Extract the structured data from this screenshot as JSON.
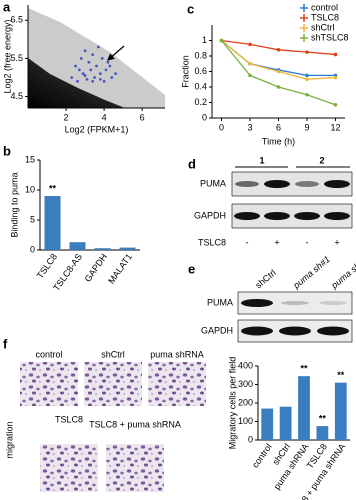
{
  "chart_data": [
    {
      "type": "scatter",
      "panel": "a",
      "xlabel": "Log2 (FPKM+1)",
      "ylabel": "Log2 (free energy)",
      "xlim": [
        0,
        7.2
      ],
      "ylim": [
        4.2,
        6.9
      ],
      "xticks": [
        2,
        4,
        6
      ],
      "yticks": [
        4.5,
        5.5,
        6.5
      ],
      "color": "#4a55c8",
      "x": [
        2.3,
        2.5,
        2.6,
        2.8,
        2.9,
        3.0,
        3.1,
        3.2,
        3.3,
        3.4,
        3.5,
        3.6,
        3.7,
        3.8,
        3.9,
        4.0,
        4.1,
        4.2,
        4.4,
        4.6,
        2.7,
        3.0,
        3.4,
        3.8,
        4.3
      ],
      "y": [
        5.0,
        5.3,
        4.9,
        5.5,
        5.1,
        5.7,
        4.95,
        5.4,
        5.2,
        5.6,
        5.0,
        5.3,
        5.8,
        5.1,
        5.5,
        4.9,
        5.2,
        5.4,
        5.0,
        5.1,
        5.2,
        5.05,
        4.9,
        4.95,
        5.3
      ]
    },
    {
      "type": "line",
      "panel": "c",
      "xlabel": "Time (h)",
      "ylabel": "Fraction",
      "x": [
        0,
        3,
        6,
        9,
        12
      ],
      "xlim": [
        -1,
        13
      ],
      "xticks": [
        0,
        3,
        6,
        9,
        12
      ],
      "ylim": [
        0,
        1.2
      ],
      "yticks": [
        0,
        0.2,
        0.4,
        0.6,
        0.8,
        1
      ],
      "series": [
        {
          "name": "control",
          "color": "#2a7bd6",
          "values": [
            1,
            0.7,
            0.62,
            0.55,
            0.55
          ]
        },
        {
          "name": "TSLC8",
          "color": "#e0401c",
          "values": [
            1,
            0.95,
            0.88,
            0.85,
            0.82
          ]
        },
        {
          "name": "shCtrl",
          "color": "#f0b43a",
          "values": [
            1,
            0.7,
            0.6,
            0.5,
            0.52
          ]
        },
        {
          "name": "shTSLC8",
          "color": "#7ab03c",
          "values": [
            1,
            0.55,
            0.4,
            0.3,
            0.17
          ]
        }
      ]
    },
    {
      "type": "bar",
      "panel": "b",
      "ylabel": "Binding to puma",
      "color": "#3a7ebf",
      "categories": [
        "TSLC8",
        "TSLC8-AS",
        "GAPDH",
        "MALAT1"
      ],
      "values": [
        9,
        1.3,
        0.3,
        0.4
      ],
      "significance": [
        "**",
        null,
        null,
        null
      ],
      "ylim": [
        0,
        15
      ],
      "yticks": [
        0,
        5,
        10,
        15
      ]
    },
    {
      "type": "bar",
      "panel": "f",
      "ylabel": "Migratory cells per field",
      "color": "#3a7ebf",
      "categories": [
        "control",
        "shCtrl",
        "puma shRNA",
        "TSLC8",
        "TSLC8 + puma shRNA"
      ],
      "values": [
        170,
        180,
        345,
        75,
        310
      ],
      "significance": [
        null,
        null,
        "**",
        "**",
        "**"
      ],
      "ylim": [
        0,
        400
      ],
      "yticks": [
        0,
        100,
        200,
        300,
        400
      ]
    }
  ],
  "blot_d": {
    "panel": "d",
    "groups": [
      "1",
      "2"
    ],
    "rows": [
      "PUMA",
      "GAPDH"
    ],
    "condition": "TSLC8",
    "signs": [
      "-",
      "+",
      "-",
      "+"
    ]
  },
  "blot_e": {
    "panel": "e",
    "lanes": [
      "shCtrl",
      "puma sh#1",
      "puma sh#2"
    ],
    "rows": [
      "PUMA",
      "GAPDH"
    ]
  },
  "micrographs": {
    "side_label": "migration",
    "labels": [
      "control",
      "shCtrl",
      "puma shRNA",
      "TSLC8",
      "TSLC8 + puma shRNA"
    ]
  }
}
